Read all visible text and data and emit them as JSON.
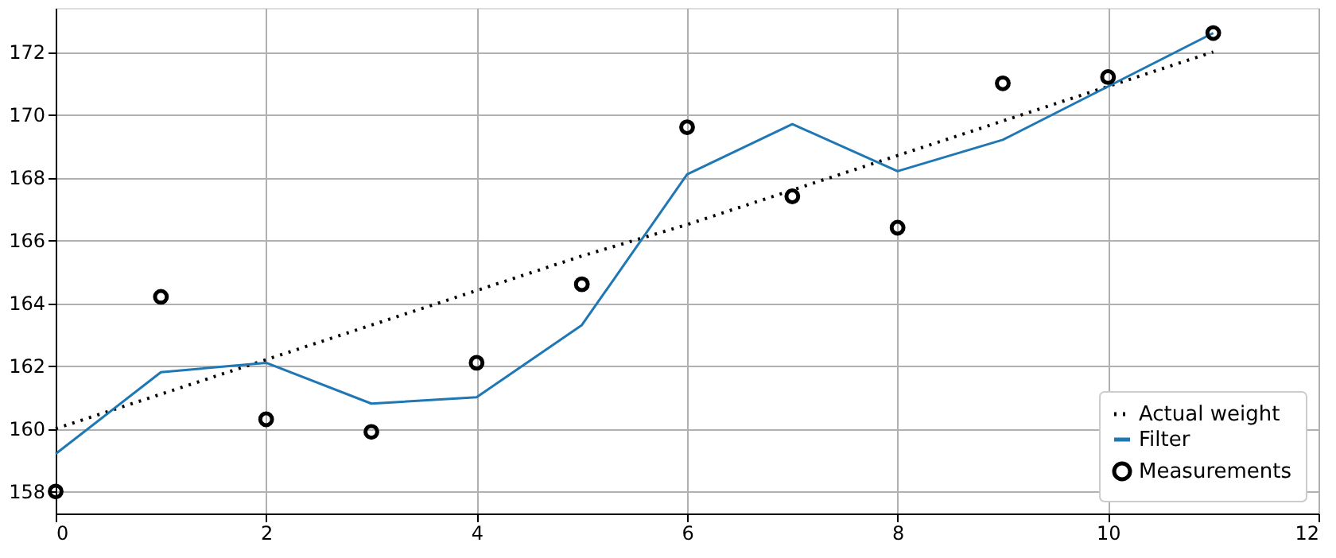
{
  "chart_data": {
    "type": "line",
    "x": [
      0,
      1,
      2,
      3,
      4,
      5,
      6,
      7,
      8,
      9,
      10,
      11
    ],
    "series": [
      {
        "name": "Actual weight",
        "color": "#000000",
        "line_style": "dotted",
        "marker": "none",
        "values": [
          160.0,
          161.1,
          162.2,
          163.3,
          164.4,
          165.5,
          166.5,
          167.6,
          168.7,
          169.8,
          170.9,
          172.0
        ]
      },
      {
        "name": "Filter",
        "color": "#1f77b4",
        "line_style": "solid",
        "marker": "none",
        "values": [
          159.2,
          161.8,
          162.1,
          160.8,
          161.0,
          163.3,
          168.1,
          169.7,
          168.2,
          169.2,
          170.9,
          172.6
        ]
      },
      {
        "name": "Measurements",
        "type": "scatter",
        "color": "#000000",
        "marker": "circle",
        "values": [
          158.0,
          164.2,
          160.3,
          159.9,
          162.1,
          164.6,
          169.6,
          167.4,
          166.4,
          171.0,
          171.2,
          172.6
        ]
      }
    ],
    "xlim": [
      0,
      12
    ],
    "xticks": [
      0,
      2,
      4,
      6,
      8,
      10,
      12
    ],
    "ylim": [
      157.3,
      173.4
    ],
    "yticks": [
      158,
      160,
      162,
      164,
      166,
      168,
      170,
      172
    ],
    "grid": true,
    "legend": "bottom right"
  }
}
